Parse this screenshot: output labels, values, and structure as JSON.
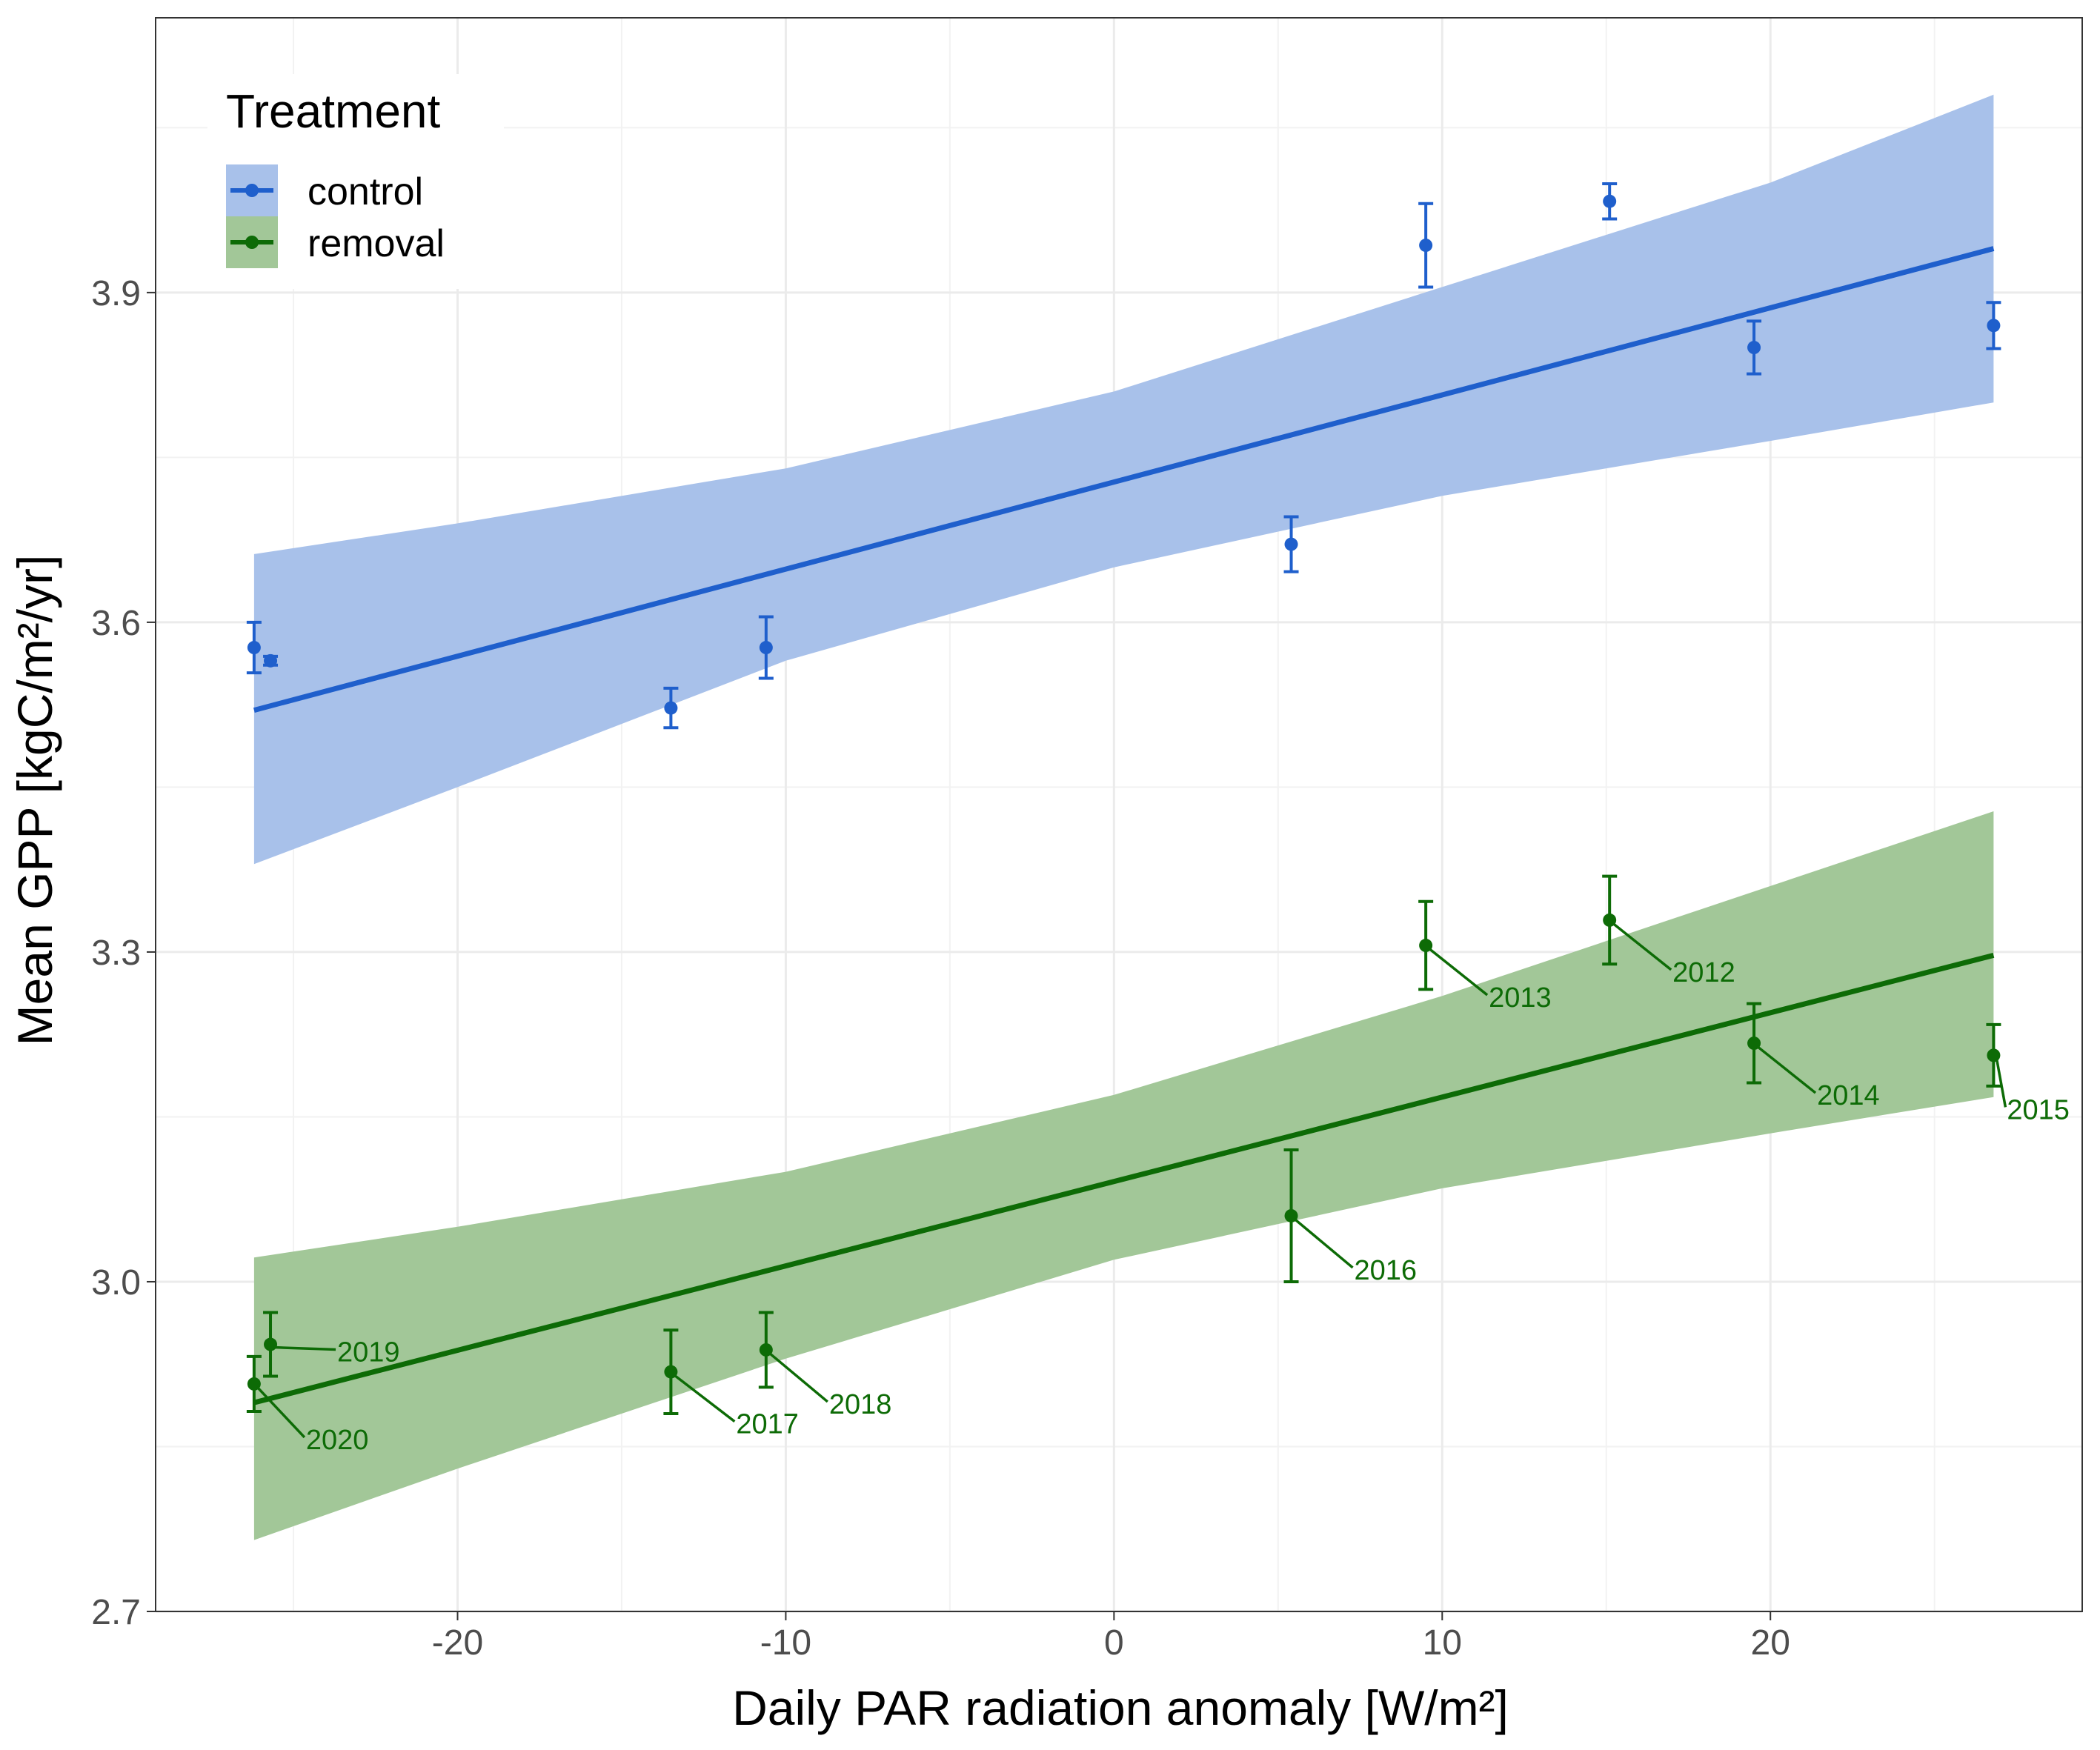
{
  "chart_data": {
    "type": "scatter",
    "xlabel": "Daily PAR radiation anomaly [W/m²]",
    "ylabel": "Mean GPP [kgC/m²/yr]",
    "xlim": [
      -29.2,
      29.5
    ],
    "ylim": [
      2.7,
      4.15
    ],
    "x_ticks": [
      -20,
      -10,
      0,
      10,
      20
    ],
    "y_ticks": [
      2.7,
      3.0,
      3.3,
      3.6,
      3.9
    ],
    "x_tick_labels": [
      "-20",
      "-10",
      "0",
      "10",
      "20"
    ],
    "y_tick_labels": [
      "2.7",
      "3.0",
      "3.3",
      "3.6",
      "3.9"
    ],
    "grid": true,
    "legend": {
      "title": "Treatment",
      "position": "top-left"
    },
    "series": [
      {
        "name": "control",
        "color": "#1f5fcc",
        "ribbon_color": "#a8c1ea",
        "points": [
          {
            "x": -26.2,
            "y": 3.577,
            "err": 0.023
          },
          {
            "x": -25.7,
            "y": 3.565,
            "err": 0.004
          },
          {
            "x": -13.5,
            "y": 3.522,
            "err": 0.018
          },
          {
            "x": -10.6,
            "y": 3.577,
            "err": 0.028
          },
          {
            "x": 5.4,
            "y": 3.671,
            "err": 0.025
          },
          {
            "x": 9.5,
            "y": 3.943,
            "err": 0.038
          },
          {
            "x": 15.1,
            "y": 3.983,
            "err": 0.016
          },
          {
            "x": 19.5,
            "y": 3.85,
            "err": 0.024
          },
          {
            "x": 26.8,
            "y": 3.87,
            "err": 0.021
          }
        ],
        "fit": {
          "x": [
            -26.2,
            26.8
          ],
          "y": [
            3.52,
            3.94
          ]
        },
        "ribbon": {
          "x": [
            -26.2,
            -20,
            -10,
            0,
            10,
            20,
            26.8
          ],
          "upper": [
            3.662,
            3.69,
            3.74,
            3.81,
            3.905,
            4.0,
            4.08
          ],
          "lower": [
            3.38,
            3.45,
            3.565,
            3.65,
            3.715,
            3.765,
            3.8
          ]
        }
      },
      {
        "name": "removal",
        "color": "#0d6b06",
        "ribbon_color": "#a2c798",
        "points": [
          {
            "x": -26.2,
            "y": 2.907,
            "err": 0.025,
            "year": "2020"
          },
          {
            "x": -25.7,
            "y": 2.943,
            "err": 0.029,
            "year": "2019"
          },
          {
            "x": -13.5,
            "y": 2.918,
            "err": 0.038,
            "year": "2017"
          },
          {
            "x": -10.6,
            "y": 2.938,
            "err": 0.034,
            "year": "2018"
          },
          {
            "x": 5.4,
            "y": 3.06,
            "err": 0.06,
            "year": "2016"
          },
          {
            "x": 9.5,
            "y": 3.306,
            "err": 0.04,
            "year": "2013"
          },
          {
            "x": 15.1,
            "y": 3.329,
            "err": 0.04,
            "year": "2012"
          },
          {
            "x": 19.5,
            "y": 3.217,
            "err": 0.036,
            "year": "2014"
          },
          {
            "x": 26.8,
            "y": 3.206,
            "err": 0.028,
            "year": "2015"
          }
        ],
        "fit": {
          "x": [
            -26.2,
            26.8
          ],
          "y": [
            2.89,
            3.297
          ]
        },
        "ribbon": {
          "x": [
            -26.2,
            -20,
            -10,
            0,
            10,
            20,
            26.8
          ],
          "upper": [
            3.022,
            3.05,
            3.1,
            3.17,
            3.26,
            3.36,
            3.428
          ],
          "lower": [
            2.765,
            2.83,
            2.93,
            3.02,
            3.085,
            3.135,
            3.168
          ]
        }
      }
    ],
    "year_labels": [
      "2020",
      "2019",
      "2017",
      "2018",
      "2016",
      "2013",
      "2012",
      "2014",
      "2015"
    ]
  }
}
